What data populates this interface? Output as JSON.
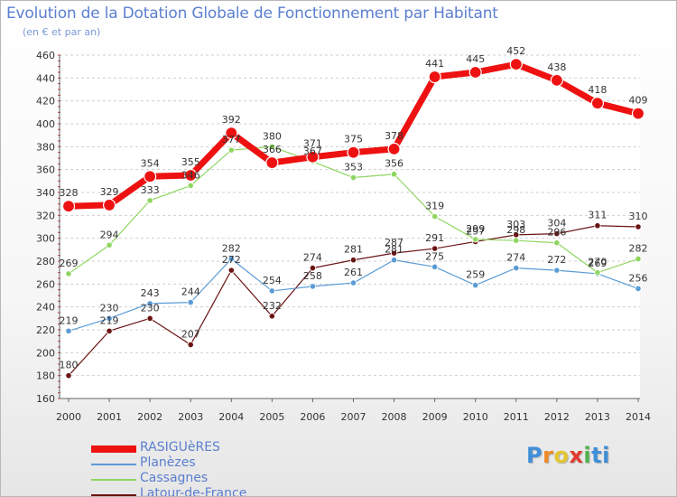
{
  "header": {
    "title": "Evolution de la Dotation Globale de Fonctionnement par Habitant",
    "subtitle": "(en € et par an)"
  },
  "logo": {
    "text": "Proxiti",
    "letters": [
      "P",
      "r",
      "o",
      "x",
      "i",
      "ti"
    ]
  },
  "chart_data": {
    "type": "line",
    "title": "Evolution de la Dotation Globale de Fonctionnement par Habitant",
    "subtitle": "(en € et par an)",
    "x": [
      2000,
      2001,
      2002,
      2003,
      2004,
      2005,
      2006,
      2007,
      2008,
      2009,
      2010,
      2011,
      2012,
      2013,
      2014
    ],
    "ylim": [
      160,
      460
    ],
    "yticks": [
      160,
      180,
      200,
      220,
      240,
      260,
      280,
      300,
      320,
      340,
      360,
      380,
      400,
      420,
      440,
      460
    ],
    "grid": "horizontal dashed",
    "legend_position": "bottom-left",
    "series": [
      {
        "name": "Latour-de-France",
        "color": "#6b1414",
        "values": [
          180,
          219,
          230,
          207,
          272,
          232,
          274,
          281,
          287,
          291,
          297,
          303,
          304,
          311,
          310
        ]
      },
      {
        "name": "Planèzes",
        "color": "#5b9bd5",
        "values": [
          219,
          230,
          243,
          244,
          282,
          254,
          258,
          261,
          281,
          275,
          259,
          274,
          272,
          269,
          256
        ]
      },
      {
        "name": "Cassagnes",
        "color": "#8fd660",
        "values": [
          269,
          294,
          333,
          346,
          377,
          380,
          367,
          353,
          356,
          319,
          299,
          298,
          296,
          270,
          282
        ]
      },
      {
        "name": "RASIGUèRES",
        "color": "#ee1111",
        "values": [
          328,
          329,
          354,
          355,
          392,
          366,
          371,
          375,
          378,
          441,
          445,
          452,
          438,
          418,
          409
        ]
      }
    ],
    "legend_order": [
      "RASIGUèRES",
      "Planèzes",
      "Cassagnes",
      "Latour-de-France"
    ]
  }
}
